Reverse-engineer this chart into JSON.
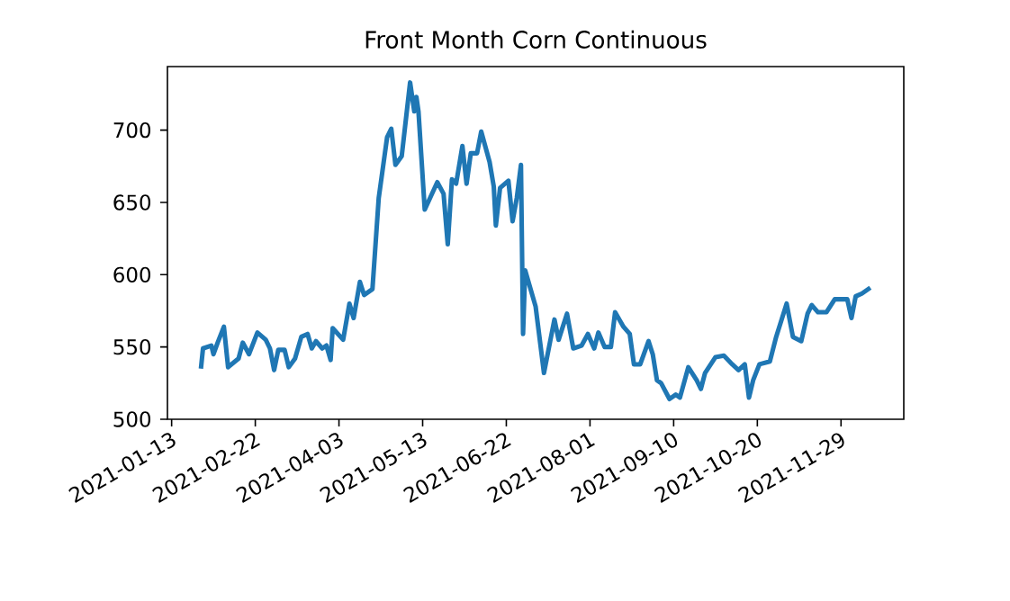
{
  "chart_data": {
    "type": "line",
    "title": "Front Month Corn Continuous",
    "color": "#1f77b4",
    "x": [
      "2021-01-27",
      "2021-01-28",
      "2021-02-01",
      "2021-02-02",
      "2021-02-04",
      "2021-02-07",
      "2021-02-09",
      "2021-02-14",
      "2021-02-16",
      "2021-02-19",
      "2021-02-23",
      "2021-02-27",
      "2021-03-01",
      "2021-03-03",
      "2021-03-05",
      "2021-03-08",
      "2021-03-10",
      "2021-03-13",
      "2021-03-16",
      "2021-03-19",
      "2021-03-21",
      "2021-03-23",
      "2021-03-26",
      "2021-03-28",
      "2021-03-30",
      "2021-03-31",
      "2021-04-05",
      "2021-04-08",
      "2021-04-10",
      "2021-04-13",
      "2021-04-15",
      "2021-04-19",
      "2021-04-22",
      "2021-04-26",
      "2021-04-28",
      "2021-04-30",
      "2021-05-03",
      "2021-05-07",
      "2021-05-09",
      "2021-05-10",
      "2021-05-11",
      "2021-05-14",
      "2021-05-20",
      "2021-05-23",
      "2021-05-25",
      "2021-05-27",
      "2021-05-29",
      "2021-06-01",
      "2021-06-03",
      "2021-06-05",
      "2021-06-08",
      "2021-06-10",
      "2021-06-14",
      "2021-06-16",
      "2021-06-17",
      "2021-06-19",
      "2021-06-23",
      "2021-06-25",
      "2021-06-27",
      "2021-06-29",
      "2021-06-30",
      "2021-07-01",
      "2021-07-06",
      "2021-07-10",
      "2021-07-15",
      "2021-07-17",
      "2021-07-21",
      "2021-07-24",
      "2021-07-28",
      "2021-07-31",
      "2021-08-03",
      "2021-08-05",
      "2021-08-08",
      "2021-08-11",
      "2021-08-13",
      "2021-08-17",
      "2021-08-20",
      "2021-08-22",
      "2021-08-25",
      "2021-08-29",
      "2021-08-31",
      "2021-09-02",
      "2021-09-04",
      "2021-09-08",
      "2021-09-11",
      "2021-09-13",
      "2021-09-17",
      "2021-09-21",
      "2021-09-23",
      "2021-09-25",
      "2021-09-30",
      "2021-10-04",
      "2021-10-08",
      "2021-10-11",
      "2021-10-14",
      "2021-10-16",
      "2021-10-18",
      "2021-10-21",
      "2021-10-26",
      "2021-10-29",
      "2021-11-03",
      "2021-11-06",
      "2021-11-10",
      "2021-11-13",
      "2021-11-15",
      "2021-11-18",
      "2021-11-22",
      "2021-11-26",
      "2021-11-29",
      "2021-12-02",
      "2021-12-04",
      "2021-12-06",
      "2021-12-09",
      "2021-12-13"
    ],
    "values": [
      535,
      549,
      551,
      545,
      553,
      564,
      536,
      542,
      553,
      545,
      560,
      555,
      549,
      534,
      548,
      548,
      536,
      542,
      557,
      559,
      549,
      554,
      549,
      551,
      541,
      563,
      555,
      580,
      570,
      595,
      586,
      590,
      653,
      695,
      701,
      676,
      682,
      733,
      713,
      723,
      713,
      645,
      664,
      656,
      621,
      666,
      663,
      689,
      663,
      684,
      684,
      699,
      678,
      661,
      634,
      660,
      665,
      637,
      653,
      676,
      559,
      603,
      578,
      532,
      569,
      555,
      573,
      549,
      551,
      559,
      549,
      560,
      550,
      550,
      574,
      564,
      559,
      538,
      538,
      554,
      545,
      527,
      525,
      514,
      517,
      515,
      536,
      527,
      521,
      532,
      543,
      544,
      538,
      534,
      538,
      515,
      527,
      538,
      540,
      557,
      580,
      557,
      554,
      573,
      579,
      574,
      574,
      583,
      583,
      583,
      570,
      585,
      587,
      591
    ],
    "xlim": [
      "2021-01-11",
      "2021-12-29"
    ],
    "xticks": [
      "2021-01-13",
      "2021-02-22",
      "2021-04-03",
      "2021-05-13",
      "2021-06-22",
      "2021-08-01",
      "2021-09-10",
      "2021-10-20",
      "2021-11-29"
    ],
    "ylim": [
      500,
      744
    ],
    "yticks": [
      500,
      550,
      600,
      650,
      700
    ],
    "grid": false,
    "marker": "none",
    "line_style": "solid"
  }
}
